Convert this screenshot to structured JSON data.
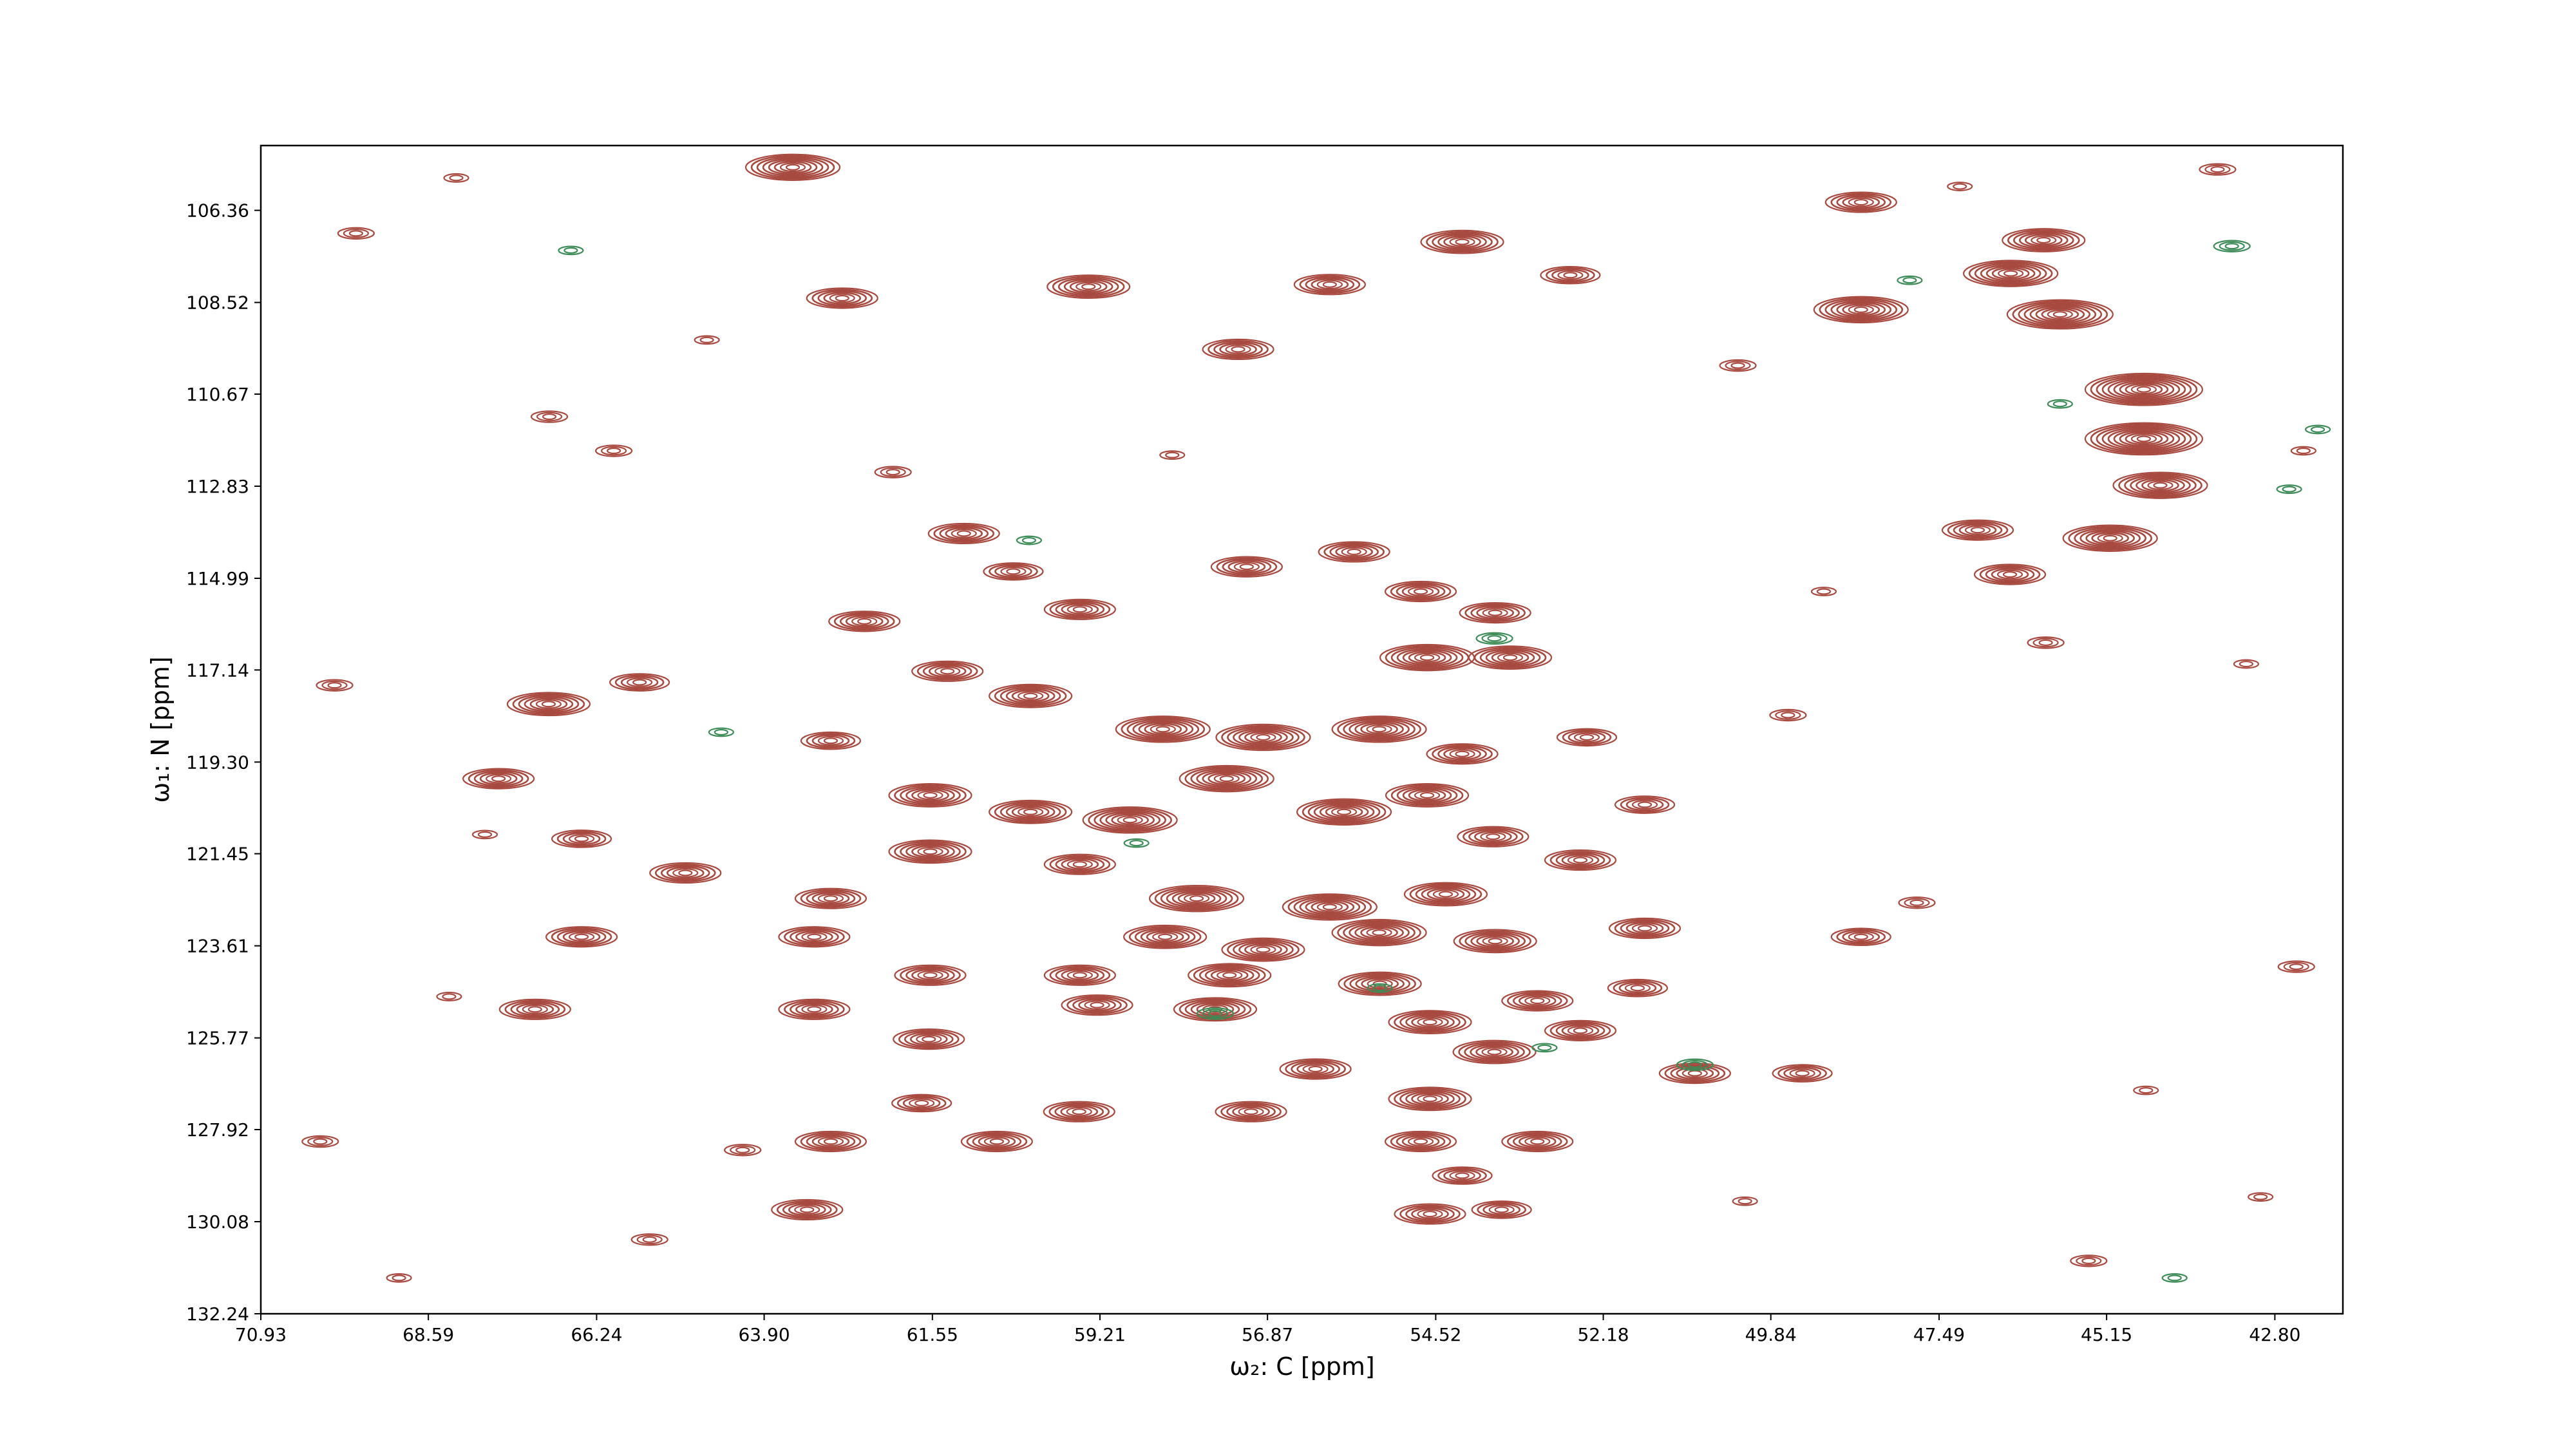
{
  "chart_data": {
    "type": "contour",
    "x_label": "ω₂: C [ppm]",
    "y_label": "ω₁: N [ppm]",
    "xlim": [
      70.93,
      41.85
    ],
    "ylim": [
      132.24,
      104.84
    ],
    "xticks": [
      70.93,
      68.59,
      66.24,
      {
        "value": 63.9,
        "label": "63.90"
      },
      61.55,
      59.21,
      56.87,
      54.52,
      52.18,
      49.84,
      47.49,
      45.15,
      {
        "value": 42.8,
        "label": "42.80"
      }
    ],
    "yticks": [
      106.36,
      108.52,
      110.67,
      112.83,
      114.99,
      117.14,
      {
        "value": 119.3,
        "label": "119.30"
      },
      121.45,
      123.61,
      125.77,
      127.92,
      130.08,
      132.24
    ],
    "series": [
      {
        "color": "#a8493f",
        "x": [
          63.5,
          59.37,
          62.81,
          57.28,
          54.15,
          56.0,
          52.64,
          48.58,
          48.58,
          46.49,
          46.03,
          45.8,
          44.63,
          44.63,
          44.4,
          46.95,
          45.1,
          46.5,
          61.11,
          57.16,
          55.66,
          54.73,
          53.69,
          54.64,
          53.48,
          60.42,
          62.5,
          59.49,
          61.34,
          60.18,
          58.33,
          56.93,
          55.31,
          54.15,
          52.41,
          66.91,
          65.64,
          67.61,
          62.97,
          61.58,
          60.18,
          58.79,
          57.44,
          55.8,
          54.64,
          53.72,
          51.6,
          52.5,
          66.45,
          65.0,
          61.58,
          59.49,
          57.86,
          56.0,
          54.38,
          51.6,
          62.97,
          63.2,
          66.45,
          58.3,
          56.93,
          55.31,
          53.69,
          48.58,
          61.58,
          59.49,
          57.4,
          55.3,
          63.2,
          67.1,
          59.25,
          57.6,
          54.6,
          53.1,
          51.7,
          52.5,
          53.7,
          50.9,
          49.4,
          61.6,
          56.2,
          54.6,
          57.1,
          59.5,
          61.7,
          62.97,
          60.65,
          53.1,
          54.73,
          54.15,
          63.3,
          54.6,
          53.6,
          69.6,
          68.2,
          66.9,
          64.7,
          62.1,
          58.2,
          50.3,
          47.2,
          43.6,
          42.4,
          69.9,
          67.8,
          64.2,
          49.6,
          46.0,
          43.2,
          70.1,
          68.3,
          65.5,
          50.2,
          47.8,
          44.6,
          42.5,
          69.0,
          66.0,
          49.1,
          45.4,
          43.0
        ],
        "values": [
          105.35,
          108.15,
          108.42,
          109.62,
          107.1,
          108.1,
          107.88,
          106.17,
          108.69,
          107.84,
          107.06,
          108.8,
          110.56,
          111.72,
          112.81,
          113.86,
          114.05,
          114.9,
          113.94,
          114.72,
          114.37,
          115.3,
          115.8,
          116.85,
          116.85,
          114.83,
          116.0,
          115.72,
          117.17,
          117.75,
          118.53,
          118.72,
          118.53,
          119.11,
          118.72,
          117.94,
          117.43,
          119.69,
          118.8,
          120.08,
          120.47,
          120.66,
          119.69,
          120.47,
          120.08,
          121.05,
          120.3,
          121.6,
          121.1,
          121.9,
          121.4,
          121.7,
          122.5,
          122.7,
          122.4,
          123.2,
          122.5,
          123.4,
          123.4,
          123.4,
          123.7,
          123.3,
          123.5,
          123.4,
          124.3,
          124.3,
          124.3,
          124.5,
          125.1,
          125.1,
          125.0,
          125.1,
          125.4,
          124.9,
          124.6,
          125.6,
          126.1,
          126.6,
          126.6,
          125.8,
          126.5,
          127.2,
          127.5,
          127.5,
          127.3,
          128.2,
          128.2,
          128.2,
          128.2,
          129.0,
          129.8,
          129.9,
          129.8,
          106.9,
          105.6,
          111.2,
          109.4,
          112.5,
          112.1,
          110.0,
          105.8,
          105.4,
          112.0,
          117.5,
          121.0,
          128.4,
          118.2,
          116.5,
          117.0,
          128.2,
          124.8,
          130.5,
          129.6,
          122.6,
          127.0,
          124.1,
          131.4,
          112.0,
          115.3,
          131.0,
          129.5
        ],
        "levels": [
          8,
          7,
          6,
          6,
          7,
          6,
          5,
          6,
          8,
          8,
          7,
          9,
          10,
          10,
          8,
          6,
          8,
          6,
          6,
          6,
          6,
          6,
          6,
          8,
          7,
          5,
          6,
          6,
          6,
          7,
          8,
          8,
          8,
          6,
          5,
          7,
          5,
          6,
          5,
          7,
          7,
          8,
          8,
          8,
          7,
          6,
          5,
          6,
          5,
          6,
          7,
          6,
          8,
          8,
          7,
          6,
          6,
          6,
          6,
          7,
          7,
          8,
          7,
          5,
          6,
          6,
          7,
          7,
          6,
          6,
          6,
          7,
          7,
          6,
          5,
          6,
          7,
          6,
          5,
          6,
          6,
          7,
          6,
          6,
          5,
          6,
          6,
          6,
          6,
          5,
          6,
          6,
          5,
          3,
          2,
          3,
          2,
          3,
          2,
          3,
          2,
          3,
          2,
          3,
          2,
          3,
          3,
          3,
          2,
          3,
          2,
          3,
          2,
          3,
          2,
          3,
          2,
          3,
          2,
          3,
          2
        ]
      },
      {
        "color": "#3d8b57",
        "x": [
          50.9,
          55.3,
          57.6,
          64.5,
          47.9,
          43.4,
          42.6,
          66.6,
          60.2,
          53.7,
          45.8,
          42.2,
          58.7,
          53.0,
          44.2
        ],
        "values": [
          126.4,
          124.6,
          125.2,
          118.6,
          108.0,
          107.2,
          112.9,
          107.3,
          114.1,
          116.4,
          110.9,
          111.5,
          121.2,
          126.0,
          131.4
        ],
        "levels": [
          3,
          2,
          3,
          2,
          2,
          3,
          2,
          2,
          2,
          3,
          2,
          2,
          2,
          2,
          2
        ]
      }
    ]
  }
}
